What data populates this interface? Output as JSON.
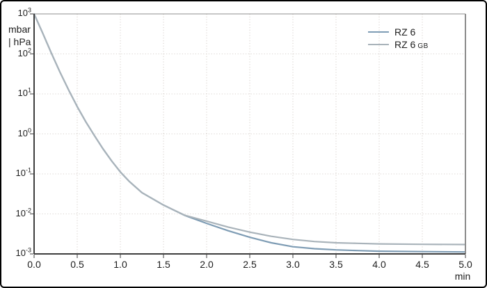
{
  "colors": {
    "background": "#ffffff",
    "border": "#000000",
    "axis": "#3d3d3d",
    "frame": "#8c8c8c",
    "grid": "#d8d2ce",
    "text": "#1d1d1d",
    "series_rz6": "#7e9cb4",
    "series_rz6gb": "#a9b3ba"
  },
  "chart_data": {
    "type": "line",
    "title": "",
    "xlabel": "min",
    "ylabel_lines": [
      "mbar",
      "| hPa"
    ],
    "x_axis": {
      "min": 0,
      "max": 5,
      "tick_values": [
        0,
        0.5,
        1,
        1.5,
        2,
        2.5,
        3,
        3.5,
        4,
        4.5,
        5
      ],
      "tick_labels": [
        "0.0",
        "0.5",
        "1.0",
        "1.5",
        "2.0",
        "2.5",
        "3.0",
        "3.5",
        "4.0",
        "4.5",
        "5.0"
      ]
    },
    "y_axis": {
      "scale": "log",
      "min_exponent": -3,
      "max_exponent": 3,
      "tick_exponents": [
        3,
        2,
        1,
        0,
        -1,
        -2,
        -3
      ],
      "unit": "mbar | hPa"
    },
    "grid": {
      "style": "dotted",
      "x_step": 0.5,
      "y_step": "decade"
    },
    "legend": {
      "position": "top-right"
    },
    "series": [
      {
        "name": "RZ 6",
        "suffix": "",
        "color": "#7e9cb4",
        "x": [
          0,
          0.1,
          0.2,
          0.3,
          0.4,
          0.5,
          0.6,
          0.7,
          0.8,
          0.9,
          1.0,
          1.1,
          1.25,
          1.5,
          1.75,
          2.0,
          2.25,
          2.5,
          2.75,
          3.0,
          3.25,
          3.5,
          3.75,
          4.0,
          4.5,
          5.0
        ],
        "pressure_mbar": [
          1000,
          330,
          105,
          35,
          12.6,
          4.8,
          2.0,
          0.9,
          0.42,
          0.21,
          0.112,
          0.066,
          0.034,
          0.0166,
          0.0091,
          0.0058,
          0.0038,
          0.0026,
          0.0019,
          0.00151,
          0.00135,
          0.00126,
          0.00121,
          0.00117,
          0.00114,
          0.00112
        ]
      },
      {
        "name": "RZ 6",
        "suffix": "GB",
        "color": "#a9b3ba",
        "x": [
          0,
          0.1,
          0.2,
          0.3,
          0.4,
          0.5,
          0.6,
          0.7,
          0.8,
          0.9,
          1.0,
          1.1,
          1.25,
          1.5,
          1.75,
          2.0,
          2.25,
          2.5,
          2.75,
          3.0,
          3.25,
          3.5,
          3.75,
          4.0,
          4.5,
          5.0
        ],
        "pressure_mbar": [
          1000,
          330,
          105,
          35,
          12.6,
          4.8,
          2.0,
          0.9,
          0.42,
          0.21,
          0.112,
          0.066,
          0.034,
          0.0166,
          0.0092,
          0.0066,
          0.0047,
          0.0035,
          0.00275,
          0.0023,
          0.00204,
          0.0019,
          0.00184,
          0.00178,
          0.00174,
          0.00172
        ]
      }
    ]
  }
}
